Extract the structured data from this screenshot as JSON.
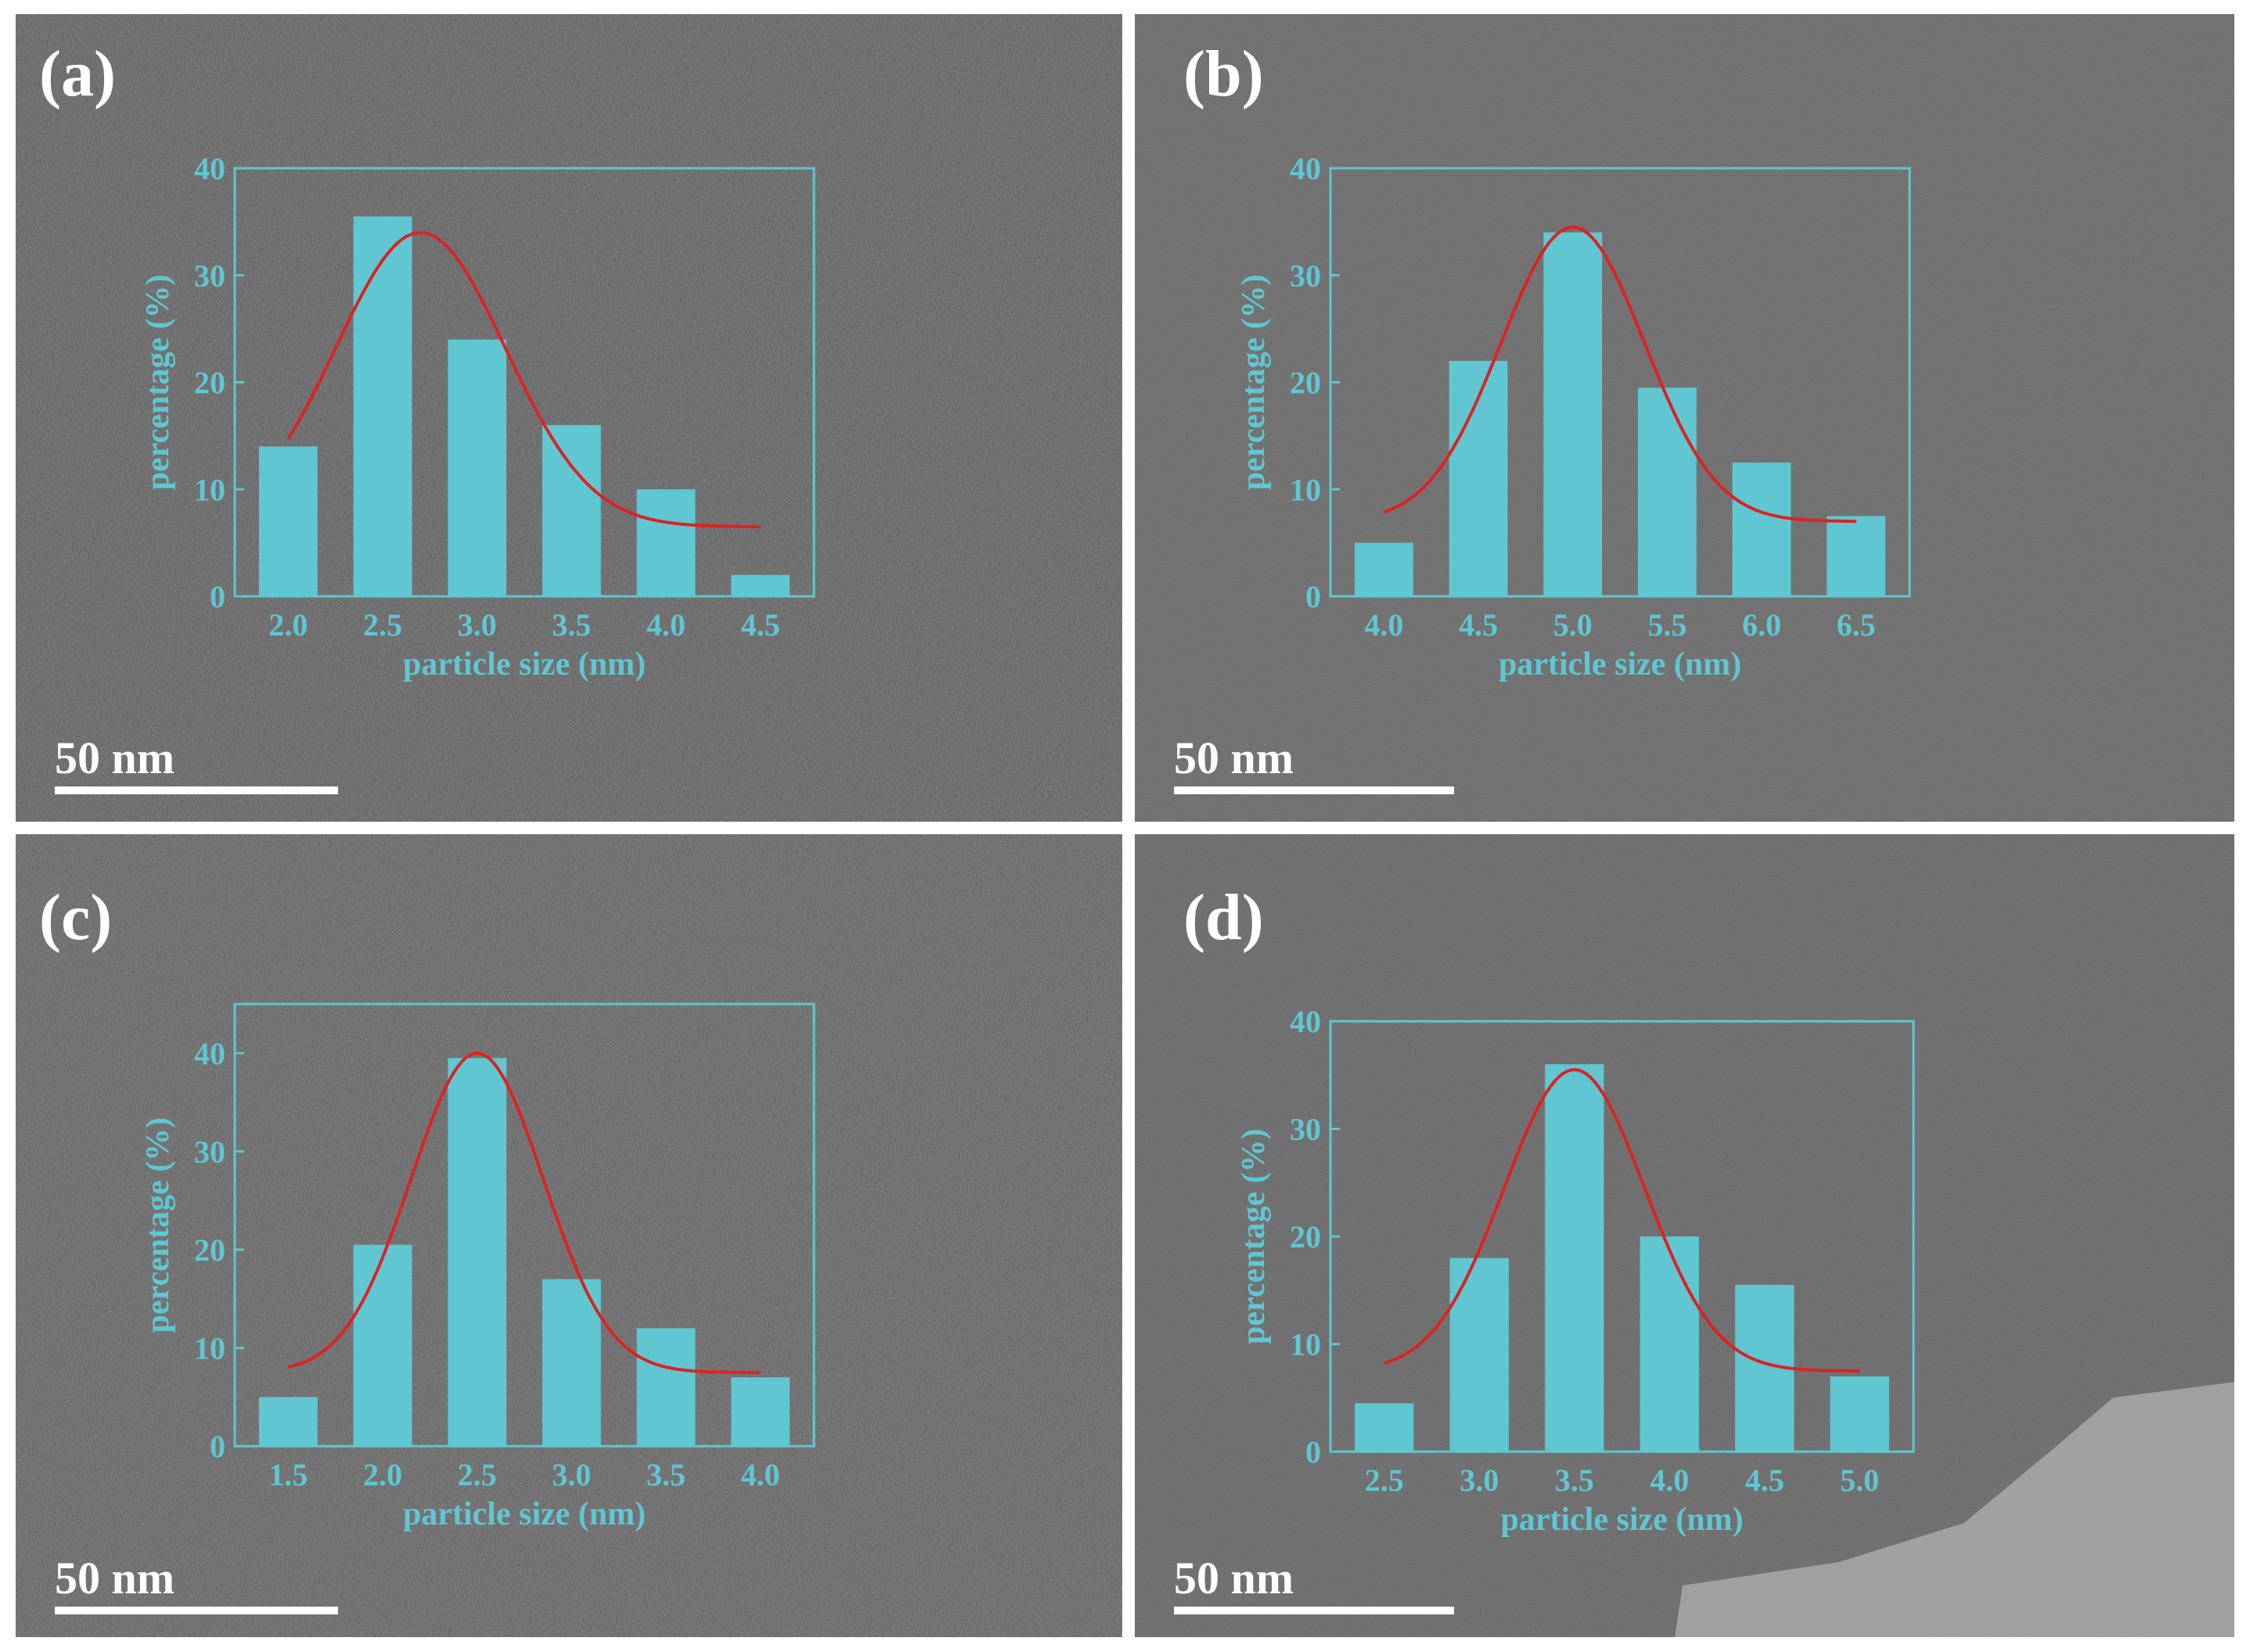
{
  "colors": {
    "bar": "#5fc6d2",
    "axis": "#5fc6d2",
    "fit": "#dd2222",
    "label_text": "#ffffff"
  },
  "chart_data": [
    {
      "type": "bar",
      "panel_label": "(a)",
      "scale_bar": "50 nm",
      "xlabel": "particle size (nm)",
      "ylabel": "percentage (%)",
      "categories": [
        "2.0",
        "2.5",
        "3.0",
        "3.5",
        "4.0",
        "4.5"
      ],
      "values": [
        14,
        35.5,
        24,
        16,
        10,
        2
      ],
      "fit_curve": {
        "x": [
          2.0,
          2.7,
          4.5
        ],
        "peak": 34,
        "sigma": 0.45,
        "baseline": 6.5
      },
      "ylim": [
        0,
        40
      ],
      "yticks": [
        "0",
        "10",
        "20",
        "30",
        "40"
      ]
    },
    {
      "type": "bar",
      "panel_label": "(b)",
      "scale_bar": "50 nm",
      "xlabel": "particle size (nm)",
      "ylabel": "percentage (%)",
      "categories": [
        "4.0",
        "4.5",
        "5.0",
        "5.5",
        "6.0",
        "6.5"
      ],
      "values": [
        5,
        22,
        34,
        19.5,
        12.5,
        7.5
      ],
      "fit_curve": {
        "x": [
          4.0,
          5.0,
          6.5
        ],
        "peak": 34.5,
        "sigma": 0.38,
        "baseline": 7
      },
      "ylim": [
        0,
        40
      ],
      "yticks": [
        "0",
        "10",
        "20",
        "30",
        "40"
      ]
    },
    {
      "type": "bar",
      "panel_label": "(c)",
      "scale_bar": "50 nm",
      "xlabel": "particle size (nm)",
      "ylabel": "percentage (%)",
      "categories": [
        "1.5",
        "2.0",
        "2.5",
        "3.0",
        "3.5",
        "4.0"
      ],
      "values": [
        5,
        20.5,
        39.5,
        17,
        12,
        7
      ],
      "fit_curve": {
        "x": [
          1.5,
          2.5,
          4.0
        ],
        "peak": 40,
        "sigma": 0.35,
        "baseline": 7.5
      },
      "ylim": [
        0,
        45
      ],
      "yticks": [
        "0",
        "10",
        "20",
        "30",
        "40"
      ]
    },
    {
      "type": "bar",
      "panel_label": "(d)",
      "scale_bar": "50 nm",
      "xlabel": "particle size (nm)",
      "ylabel": "percentage (%)",
      "categories": [
        "2.5",
        "3.0",
        "3.5",
        "4.0",
        "4.5",
        "5.0"
      ],
      "values": [
        4.5,
        18,
        36,
        20,
        15.5,
        7
      ],
      "fit_curve": {
        "x": [
          2.5,
          3.5,
          5.0
        ],
        "peak": 35.5,
        "sigma": 0.37,
        "baseline": 7.5
      },
      "ylim": [
        0,
        40
      ],
      "yticks": [
        "0",
        "10",
        "20",
        "30",
        "40"
      ]
    }
  ]
}
